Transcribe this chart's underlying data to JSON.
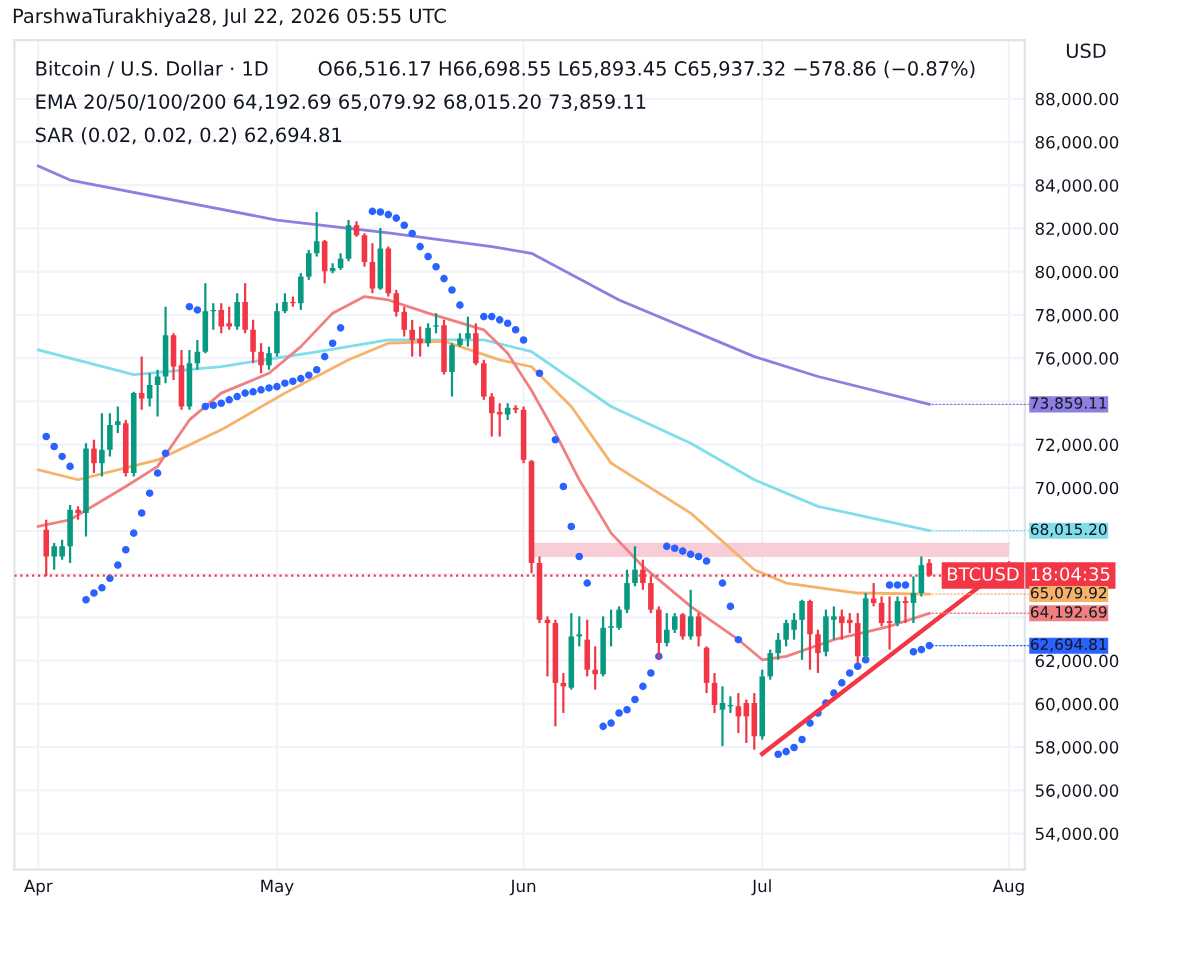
{
  "chart_data": {
    "type": "candlestick",
    "title": "Bitcoin / U.S. Dollar · 1D",
    "ylabel": "USD",
    "annotations": [
      "ParshwaTurakhiya28, Jul 22, 2026 05:55 UTC",
      "O66,516.17 H66,698.55 L65,893.45 C65,937.32 −578.86 (−0.87%)",
      "EMA 20/50/100/200 64,192.69 65,079.92 68,015.20 73,859.11",
      "SAR (0.02, 0.02, 0.2) 62,694.81",
      "18:04:35",
      {
        "text": "73,859.11",
        "x": "2026-07-22",
        "y": 73859.11
      },
      {
        "text": "68,015.20",
        "x": "2026-07-22",
        "y": 68015.2
      },
      {
        "text": "65,079.92",
        "x": "2026-07-22",
        "y": 65079.92
      },
      {
        "text": "64,192.69",
        "x": "2026-07-22",
        "y": 64192.69
      },
      {
        "text": "62,694.81",
        "x": "2026-07-22",
        "y": 62694.81
      }
    ],
    "x": [
      "2026-04-02",
      "2026-04-03",
      "2026-04-04",
      "2026-04-05",
      "2026-04-06",
      "2026-04-07",
      "2026-04-08",
      "2026-04-09",
      "2026-04-10",
      "2026-04-11",
      "2026-04-12",
      "2026-04-13",
      "2026-04-14",
      "2026-04-15",
      "2026-04-16",
      "2026-04-17",
      "2026-04-18",
      "2026-04-19",
      "2026-04-20",
      "2026-04-21",
      "2026-04-22",
      "2026-04-23",
      "2026-04-24",
      "2026-04-25",
      "2026-04-26",
      "2026-04-27",
      "2026-04-28",
      "2026-04-29",
      "2026-04-30",
      "2026-05-01",
      "2026-05-02",
      "2026-05-03",
      "2026-05-04",
      "2026-05-05",
      "2026-05-06",
      "2026-05-07",
      "2026-05-08",
      "2026-05-09",
      "2026-05-10",
      "2026-05-11",
      "2026-05-12",
      "2026-05-13",
      "2026-05-14",
      "2026-05-15",
      "2026-05-16",
      "2026-05-17",
      "2026-05-18",
      "2026-05-19",
      "2026-05-20",
      "2026-05-21",
      "2026-05-22",
      "2026-05-23",
      "2026-05-24",
      "2026-05-25",
      "2026-05-26",
      "2026-05-27",
      "2026-05-28",
      "2026-05-29",
      "2026-05-30",
      "2026-05-31",
      "2026-06-01",
      "2026-06-02",
      "2026-06-03",
      "2026-06-04",
      "2026-06-05",
      "2026-06-06",
      "2026-06-07",
      "2026-06-08",
      "2026-06-09",
      "2026-06-10",
      "2026-06-11",
      "2026-06-12",
      "2026-06-13",
      "2026-06-14",
      "2026-06-15",
      "2026-06-16",
      "2026-06-17",
      "2026-06-18",
      "2026-06-19",
      "2026-06-20",
      "2026-06-21",
      "2026-06-22",
      "2026-06-23",
      "2026-06-24",
      "2026-06-25",
      "2026-06-26",
      "2026-06-27",
      "2026-06-28",
      "2026-06-29",
      "2026-06-30",
      "2026-07-01",
      "2026-07-02",
      "2026-07-03",
      "2026-07-04",
      "2026-07-05",
      "2026-07-06",
      "2026-07-07",
      "2026-07-08",
      "2026-07-09",
      "2026-07-10",
      "2026-07-11",
      "2026-07-12",
      "2026-07-13",
      "2026-07-14",
      "2026-07-15",
      "2026-07-16",
      "2026-07-17",
      "2026-07-18",
      "2026-07-19",
      "2026-07-20",
      "2026-07-21",
      "2026-07-22"
    ],
    "ohlc": [
      [
        68060,
        68520,
        65900,
        66820
      ],
      [
        66820,
        67440,
        66210,
        67290
      ],
      [
        66820,
        67590,
        66670,
        67290
      ],
      [
        67290,
        69200,
        66520,
        68980
      ],
      [
        68980,
        69140,
        68520,
        68830
      ],
      [
        68830,
        72060,
        67750,
        71820
      ],
      [
        71820,
        72220,
        70680,
        71140
      ],
      [
        71140,
        73450,
        70520,
        71760
      ],
      [
        71760,
        73450,
        71450,
        72900
      ],
      [
        72900,
        73760,
        72530,
        73080
      ],
      [
        72990,
        73140,
        70520,
        70680
      ],
      [
        70680,
        74440,
        70520,
        74380
      ],
      [
        74380,
        76070,
        73610,
        74130
      ],
      [
        74130,
        75300,
        73760,
        74750
      ],
      [
        74750,
        75460,
        73300,
        75150
      ],
      [
        75150,
        78380,
        74840,
        77060
      ],
      [
        77060,
        77150,
        74990,
        75610
      ],
      [
        75670,
        76380,
        73610,
        73760
      ],
      [
        73760,
        76380,
        73610,
        75760
      ],
      [
        75760,
        76840,
        75460,
        76290
      ],
      [
        76290,
        79460,
        76230,
        78170
      ],
      [
        78170,
        78540,
        77310,
        78230
      ],
      [
        78230,
        78540,
        77150,
        77460
      ],
      [
        77610,
        78380,
        77310,
        77460
      ],
      [
        77460,
        79000,
        77310,
        78600
      ],
      [
        78600,
        79460,
        77150,
        77310
      ],
      [
        77310,
        77770,
        75760,
        76290
      ],
      [
        76290,
        76690,
        75300,
        75670
      ],
      [
        75670,
        76530,
        75460,
        76230
      ],
      [
        76230,
        78540,
        76070,
        78170
      ],
      [
        78170,
        79000,
        78080,
        78600
      ],
      [
        78600,
        78850,
        78380,
        78540
      ],
      [
        78540,
        79930,
        78230,
        79770
      ],
      [
        79770,
        81000,
        79620,
        80850
      ],
      [
        80850,
        82760,
        80700,
        81410
      ],
      [
        81410,
        81470,
        79460,
        80020
      ],
      [
        80020,
        80390,
        79930,
        80170
      ],
      [
        80170,
        80850,
        80080,
        80600
      ],
      [
        80600,
        82390,
        80480,
        82150
      ],
      [
        82150,
        82330,
        81620,
        81680
      ],
      [
        81680,
        81780,
        80230,
        80450
      ],
      [
        80450,
        81310,
        79000,
        79220
      ],
      [
        79220,
        82020,
        79160,
        81070
      ],
      [
        81070,
        81160,
        78850,
        79000
      ],
      [
        79000,
        79160,
        77920,
        78140
      ],
      [
        78140,
        78380,
        77000,
        77310
      ],
      [
        77310,
        77770,
        76070,
        76840
      ],
      [
        76900,
        77460,
        76070,
        76690
      ],
      [
        76690,
        77610,
        76530,
        77400
      ],
      [
        77460,
        78080,
        77150,
        77520
      ],
      [
        77520,
        77770,
        75240,
        75360
      ],
      [
        75360,
        76690,
        74220,
        76600
      ],
      [
        76600,
        77150,
        76530,
        76900
      ],
      [
        76900,
        77920,
        76530,
        77150
      ],
      [
        77150,
        77610,
        75670,
        75760
      ],
      [
        75760,
        75920,
        74070,
        74220
      ],
      [
        74220,
        74380,
        72370,
        73450
      ],
      [
        73510,
        73910,
        72370,
        73390
      ],
      [
        73390,
        73910,
        73140,
        73700
      ],
      [
        73700,
        73820,
        73450,
        73610
      ],
      [
        73610,
        73760,
        71140,
        71290
      ],
      [
        71230,
        71290,
        66050,
        66520
      ],
      [
        66520,
        66820,
        63740,
        63890
      ],
      [
        63890,
        64050,
        61270,
        63740
      ],
      [
        63740,
        63890,
        58960,
        60970
      ],
      [
        60970,
        61430,
        59580,
        60810
      ],
      [
        60750,
        64200,
        60660,
        63120
      ],
      [
        63120,
        64050,
        62660,
        63220
      ],
      [
        62970,
        63890,
        61270,
        61580
      ],
      [
        61580,
        62660,
        60660,
        61370
      ],
      [
        61370,
        64050,
        61270,
        63520
      ],
      [
        63520,
        64360,
        62660,
        63590
      ],
      [
        63520,
        64510,
        63430,
        64360
      ],
      [
        64360,
        66210,
        64200,
        65590
      ],
      [
        65590,
        67290,
        65440,
        66210
      ],
      [
        66210,
        66670,
        65280,
        65590
      ],
      [
        65590,
        65900,
        64200,
        64360
      ],
      [
        64360,
        64510,
        62040,
        62820
      ],
      [
        62820,
        64200,
        62660,
        63430
      ],
      [
        63430,
        64200,
        63280,
        64050
      ],
      [
        64140,
        64200,
        62970,
        63120
      ],
      [
        63120,
        65280,
        62970,
        64050
      ],
      [
        64050,
        64200,
        62660,
        63120
      ],
      [
        62600,
        62660,
        60500,
        60970
      ],
      [
        60970,
        61430,
        59580,
        59950
      ],
      [
        59730,
        60810,
        58040,
        60040
      ],
      [
        59890,
        60350,
        59580,
        59950
      ],
      [
        59890,
        60500,
        58650,
        59420
      ],
      [
        60040,
        60200,
        58190,
        59420
      ],
      [
        60040,
        60500,
        57880,
        58500
      ],
      [
        58500,
        61580,
        58350,
        61270
      ],
      [
        61270,
        62510,
        61120,
        62350
      ],
      [
        62350,
        63280,
        62040,
        62970
      ],
      [
        62970,
        63890,
        62660,
        63740
      ],
      [
        63430,
        64200,
        62970,
        63890
      ],
      [
        63890,
        64820,
        62040,
        64760
      ],
      [
        64760,
        64820,
        61580,
        63220
      ],
      [
        63220,
        63430,
        61430,
        62350
      ],
      [
        62410,
        64360,
        62200,
        64050
      ],
      [
        63890,
        64510,
        62970,
        64050
      ],
      [
        64050,
        64360,
        62970,
        63740
      ],
      [
        63890,
        64200,
        63280,
        63740
      ],
      [
        63740,
        64200,
        61890,
        62200
      ],
      [
        62200,
        65130,
        62040,
        64880
      ],
      [
        64880,
        65590,
        64510,
        64670
      ],
      [
        64670,
        64970,
        63590,
        63740
      ],
      [
        63830,
        64970,
        62510,
        63740
      ],
      [
        63740,
        64970,
        63590,
        64760
      ],
      [
        64760,
        64970,
        63740,
        64670
      ],
      [
        64670,
        65900,
        63740,
        65130
      ],
      [
        65130,
        66820,
        64970,
        66420
      ],
      [
        66516.17,
        66698.55,
        65893.45,
        65937.32
      ]
    ],
    "colors": [
      "#f23645",
      "#089981",
      "#089981",
      "#089981",
      "#f23645",
      "#089981",
      "#f23645",
      "#089981",
      "#089981",
      "#089981",
      "#f23645",
      "#089981",
      "#f23645",
      "#089981",
      "#089981",
      "#089981",
      "#f23645",
      "#f23645",
      "#089981",
      "#089981",
      "#089981",
      "#089981",
      "#f23645",
      "#f23645",
      "#089981",
      "#f23645",
      "#f23645",
      "#f23645",
      "#089981",
      "#089981",
      "#089981",
      "#f23645",
      "#089981",
      "#089981",
      "#089981",
      "#f23645",
      "#089981",
      "#089981",
      "#089981",
      "#f23645",
      "#f23645",
      "#f23645",
      "#089981",
      "#f23645",
      "#f23645",
      "#f23645",
      "#f23645",
      "#f23645",
      "#089981",
      "#089981",
      "#f23645",
      "#089981",
      "#089981",
      "#089981",
      "#f23645",
      "#f23645",
      "#f23645",
      "#f23645",
      "#089981",
      "#f23645",
      "#f23645",
      "#f23645",
      "#f23645",
      "#f23645",
      "#f23645",
      "#f23645",
      "#089981",
      "#089981",
      "#f23645",
      "#f23645",
      "#089981",
      "#089981",
      "#089981",
      "#089981",
      "#089981",
      "#f23645",
      "#f23645",
      "#f23645",
      "#089981",
      "#089981",
      "#f23645",
      "#089981",
      "#f23645",
      "#f23645",
      "#f23645",
      "#089981",
      "#089981",
      "#f23645",
      "#f23645",
      "#f23645",
      "#089981",
      "#089981",
      "#089981",
      "#089981",
      "#089981",
      "#089981",
      "#f23645",
      "#f23645",
      "#089981",
      "#089981",
      "#f23645",
      "#f23645",
      "#f23645",
      "#089981",
      "#f23645",
      "#f23645",
      "#f23645",
      "#089981",
      "#f23645",
      "#089981",
      "#089981",
      "#f23645"
    ],
    "series": [
      {
        "type": "line",
        "color": "#f9cdd8",
        "x": [
          "2026-06-02",
          "2026-08-01"
        ],
        "values": [
          67400,
          67400
        ],
        "lower": [
          66800,
          66800
        ],
        "upper": [
          67400,
          67400
        ]
      },
      {
        "type": "line",
        "color": "#8c7fe0",
        "x": [
          "2026-04-01",
          "2026-04-05",
          "2026-05-01",
          "2026-05-15",
          "2026-05-28",
          "2026-06-02",
          "2026-06-13",
          "2026-06-30",
          "2026-07-08",
          "2026-07-22"
        ],
        "values": [
          84890,
          84240,
          82390,
          81800,
          81160,
          80850,
          78690,
          76070,
          75150,
          73859.11
        ]
      },
      {
        "type": "line",
        "color": "#80deea",
        "x": [
          "2026-04-01",
          "2026-04-13",
          "2026-04-24",
          "2026-05-06",
          "2026-05-15",
          "2026-05-27",
          "2026-06-02",
          "2026-06-12",
          "2026-06-22",
          "2026-06-30",
          "2026-07-08",
          "2026-07-22"
        ],
        "values": [
          76380,
          75240,
          75610,
          76290,
          76840,
          76840,
          76300,
          73760,
          72060,
          70370,
          69140,
          68015.2
        ]
      },
      {
        "type": "line",
        "color": "#f7b26a",
        "x": [
          "2026-04-01",
          "2026-04-06",
          "2026-04-16",
          "2026-04-24",
          "2026-05-02",
          "2026-05-10",
          "2026-05-15",
          "2026-05-22",
          "2026-05-29",
          "2026-06-02",
          "2026-06-07",
          "2026-06-12",
          "2026-06-22",
          "2026-06-30",
          "2026-07-04",
          "2026-07-13",
          "2026-07-22"
        ],
        "values": [
          70830,
          70370,
          71290,
          72680,
          74380,
          75920,
          76690,
          76780,
          75920,
          75600,
          73760,
          71140,
          68830,
          66210,
          65590,
          65130,
          65079.92
        ]
      },
      {
        "type": "line",
        "color": "#f08080",
        "x": [
          "2026-04-01",
          "2026-04-05",
          "2026-04-12",
          "2026-04-16",
          "2026-04-20",
          "2026-04-24",
          "2026-04-30",
          "2026-05-04",
          "2026-05-08",
          "2026-05-12",
          "2026-05-15",
          "2026-05-20",
          "2026-05-27",
          "2026-05-30",
          "2026-06-02",
          "2026-06-05",
          "2026-06-08",
          "2026-06-12",
          "2026-06-16",
          "2026-06-22",
          "2026-06-28",
          "2026-07-01",
          "2026-07-04",
          "2026-07-10",
          "2026-07-17",
          "2026-07-22"
        ],
        "values": [
          68210,
          68520,
          70060,
          70990,
          73140,
          74380,
          75300,
          76530,
          78080,
          78850,
          78690,
          78080,
          77310,
          76230,
          74500,
          72530,
          70370,
          67900,
          66360,
          64510,
          62970,
          62040,
          62200,
          62970,
          63590,
          64192.69
        ]
      },
      {
        "type": "scatter",
        "color": "#2962ff",
        "marker": "circle",
        "x": [
          "2026-04-02",
          "2026-04-03",
          "2026-04-04",
          "2026-04-05",
          "2026-04-07",
          "2026-04-08",
          "2026-04-09",
          "2026-04-10",
          "2026-04-11",
          "2026-04-12",
          "2026-04-13",
          "2026-04-14",
          "2026-04-15",
          "2026-04-16",
          "2026-04-17",
          "2026-04-20",
          "2026-04-21",
          "2026-04-22",
          "2026-04-23",
          "2026-04-24",
          "2026-04-25",
          "2026-04-26",
          "2026-04-27",
          "2026-04-28",
          "2026-04-29",
          "2026-04-30",
          "2026-05-01",
          "2026-05-02",
          "2026-05-03",
          "2026-05-04",
          "2026-05-05",
          "2026-05-06",
          "2026-05-07",
          "2026-05-08",
          "2026-05-09",
          "2026-05-13",
          "2026-05-14",
          "2026-05-15",
          "2026-05-16",
          "2026-05-17",
          "2026-05-18",
          "2026-05-19",
          "2026-05-20",
          "2026-05-21",
          "2026-05-22",
          "2026-05-23",
          "2026-05-24",
          "2026-05-27",
          "2026-05-28",
          "2026-05-29",
          "2026-05-30",
          "2026-05-31",
          "2026-06-01",
          "2026-06-03",
          "2026-06-05",
          "2026-06-06",
          "2026-06-07",
          "2026-06-08",
          "2026-06-09",
          "2026-06-11",
          "2026-06-12",
          "2026-06-13",
          "2026-06-14",
          "2026-06-15",
          "2026-06-16",
          "2026-06-17",
          "2026-06-18",
          "2026-06-19",
          "2026-06-20",
          "2026-06-21",
          "2026-06-22",
          "2026-06-23",
          "2026-06-24",
          "2026-06-26",
          "2026-06-27",
          "2026-06-28",
          "2026-07-03",
          "2026-07-04",
          "2026-07-05",
          "2026-07-06",
          "2026-07-07",
          "2026-07-08",
          "2026-07-09",
          "2026-07-10",
          "2026-07-11",
          "2026-07-12",
          "2026-07-13",
          "2026-07-14",
          "2026-07-17",
          "2026-07-18",
          "2026-07-19",
          "2026-07-20",
          "2026-07-21",
          "2026-07-22"
        ],
        "values": [
          72370,
          71910,
          71450,
          70990,
          64820,
          65130,
          65370,
          65810,
          66420,
          67130,
          67900,
          68830,
          69750,
          70680,
          71600,
          78380,
          78230,
          73760,
          73820,
          73910,
          74070,
          74220,
          74380,
          74440,
          74530,
          74620,
          74680,
          74840,
          74930,
          75050,
          75210,
          75460,
          76070,
          76690,
          77400,
          82790,
          82760,
          82640,
          82480,
          82150,
          81770,
          81160,
          80700,
          80230,
          79680,
          79150,
          78450,
          77920,
          77920,
          77770,
          77610,
          77310,
          76840,
          75300,
          72220,
          70060,
          68210,
          66820,
          65590,
          58960,
          59110,
          59580,
          59730,
          60200,
          60810,
          61430,
          62200,
          67290,
          67200,
          67070,
          66920,
          66820,
          66610,
          65590,
          64510,
          62970,
          57670,
          57790,
          57980,
          58350,
          59110,
          59580,
          60040,
          60500,
          60970,
          61430,
          61740,
          62040,
          65500,
          65500,
          65500,
          62410,
          62510,
          62694.81
        ]
      },
      {
        "type": "line",
        "color": "#f23645",
        "x": [
          "2026-07-01",
          "2026-08-01"
        ],
        "values": [
          57690,
          66480
        ]
      }
    ],
    "ref_lines": [
      {
        "axis": "y",
        "value": 65937.32,
        "label": "BTCUSD",
        "color": "#f23645",
        "line_style": "dotted"
      }
    ],
    "xlim": [
      "2026-03-29",
      "2026-08-03"
    ],
    "xticks": [
      {
        "value": "2026-04-01",
        "label": "Apr"
      },
      {
        "value": "2026-05-01",
        "label": "May"
      },
      {
        "value": "2026-06-01",
        "label": "Jun"
      },
      {
        "value": "2026-07-01",
        "label": "Jul"
      },
      {
        "value": "2026-08-01",
        "label": "Aug"
      }
    ],
    "ylim": [
      52330,
      90720
    ],
    "yticks": [
      {
        "value": 54000,
        "label": "54,000.00"
      },
      {
        "value": 56000,
        "label": "56,000.00"
      },
      {
        "value": 58000,
        "label": "58,000.00"
      },
      {
        "value": 60000,
        "label": "60,000.00"
      },
      {
        "value": 62000,
        "label": "62,000.00"
      },
      {
        "value": 64000,
        "label": null
      },
      {
        "value": 66000,
        "label": null
      },
      {
        "value": 68000,
        "label": null
      },
      {
        "value": 70000,
        "label": "70,000.00"
      },
      {
        "value": 72000,
        "label": "72,000.00"
      },
      {
        "value": 74000,
        "label": null
      },
      {
        "value": 76000,
        "label": "76,000.00"
      },
      {
        "value": 78000,
        "label": "78,000.00"
      },
      {
        "value": 80000,
        "label": "80,000.00"
      },
      {
        "value": 82000,
        "label": "82,000.00"
      },
      {
        "value": 84000,
        "label": "84,000.00"
      },
      {
        "value": 86000,
        "label": "86,000.00"
      },
      {
        "value": 88000,
        "label": "88,000.00"
      }
    ],
    "grid": true
  }
}
